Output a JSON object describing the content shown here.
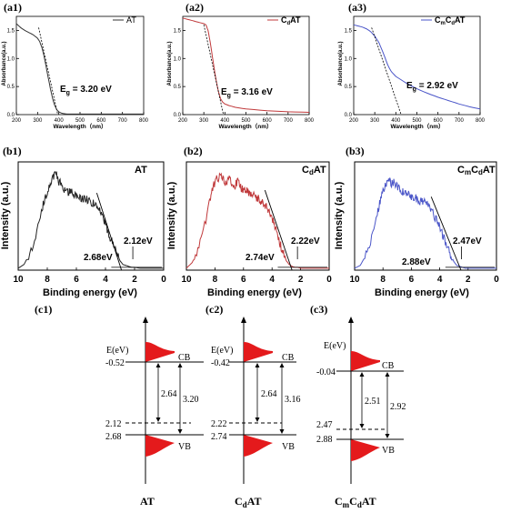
{
  "chart_data": [
    {
      "id": "a1",
      "panel_label": "(a1)",
      "type": "line",
      "legend": "AT",
      "legend_main": "AT",
      "legend_sub1": "",
      "legend_mid": "",
      "legend_sub2": "",
      "legend_tail": "",
      "series_color": "#333333",
      "xlabel": "Wavelength（nm）",
      "ylabel": "Absorbance(a.u.)",
      "xlim": [
        200,
        800
      ],
      "ylim": [
        0,
        1.75
      ],
      "xticks": [
        200,
        300,
        400,
        500,
        600,
        700,
        800
      ],
      "yticks": [
        0.0,
        0.5,
        1.0,
        1.5
      ],
      "annotation": "E_g = 3.20 eV",
      "annotation_main": "E",
      "annotation_sub": "g",
      "annotation_rest": " = 3.20 eV",
      "tangent": [
        [
          305,
          1.55
        ],
        [
          395,
          0.0
        ]
      ],
      "x": [
        200,
        220,
        240,
        260,
        280,
        300,
        310,
        320,
        330,
        340,
        350,
        360,
        370,
        380,
        390,
        400,
        410,
        420,
        440,
        460,
        500,
        600,
        700,
        800
      ],
      "y": [
        1.62,
        1.55,
        1.5,
        1.46,
        1.42,
        1.36,
        1.3,
        1.2,
        1.05,
        0.86,
        0.66,
        0.47,
        0.3,
        0.17,
        0.09,
        0.05,
        0.03,
        0.02,
        0.01,
        0.01,
        0.01,
        0.01,
        0.01,
        0.01
      ]
    },
    {
      "id": "a2",
      "panel_label": "(a2)",
      "type": "line",
      "legend": "CdAT",
      "legend_main": "C",
      "legend_sub1": "d",
      "legend_mid": "AT",
      "legend_sub2": "",
      "legend_tail": "",
      "series_color": "#c0393b",
      "xlabel": "Wavelength（nm）",
      "ylabel": "Absorbance(a.u.)",
      "xlim": [
        200,
        800
      ],
      "ylim": [
        0,
        1.75
      ],
      "xticks": [
        200,
        300,
        400,
        500,
        600,
        700,
        800
      ],
      "yticks": [
        0.0,
        0.5,
        1.0,
        1.5
      ],
      "annotation": "E_g = 3.16 eV",
      "annotation_main": "E",
      "annotation_sub": "g",
      "annotation_rest": " = 3.16 eV",
      "tangent": [
        [
          300,
          1.6
        ],
        [
          393,
          0.0
        ]
      ],
      "x": [
        200,
        220,
        240,
        260,
        280,
        300,
        310,
        320,
        330,
        340,
        350,
        360,
        370,
        380,
        390,
        400,
        420,
        450,
        500,
        600,
        700,
        800
      ],
      "y": [
        1.72,
        1.7,
        1.68,
        1.66,
        1.64,
        1.62,
        1.6,
        1.5,
        1.3,
        1.05,
        0.8,
        0.58,
        0.4,
        0.28,
        0.22,
        0.19,
        0.16,
        0.13,
        0.1,
        0.07,
        0.05,
        0.04
      ]
    },
    {
      "id": "a3",
      "panel_label": "(a3)",
      "type": "line",
      "legend": "CmCdAT",
      "legend_main": "C",
      "legend_sub1": "m",
      "legend_mid": "C",
      "legend_sub2": "d",
      "legend_tail": "AT",
      "series_color": "#4a55c8",
      "xlabel": "Wavelength（nm）",
      "ylabel": "Absorbance(a.u.)",
      "xlim": [
        200,
        800
      ],
      "ylim": [
        0,
        1.75
      ],
      "xticks": [
        200,
        300,
        400,
        500,
        600,
        700,
        800
      ],
      "yticks": [
        0.0,
        0.5,
        1.0,
        1.5
      ],
      "annotation": "E_g = 2.92 eV",
      "annotation_main": "E",
      "annotation_sub": "g",
      "annotation_rest": " = 2.92 eV",
      "tangent": [
        [
          285,
          1.55
        ],
        [
          425,
          0.0
        ]
      ],
      "x": [
        200,
        220,
        240,
        260,
        280,
        300,
        320,
        340,
        350,
        360,
        370,
        380,
        400,
        450,
        500,
        550,
        600,
        650,
        700,
        750,
        800
      ],
      "y": [
        1.6,
        1.58,
        1.56,
        1.53,
        1.48,
        1.4,
        1.28,
        1.1,
        1.0,
        0.9,
        0.82,
        0.76,
        0.68,
        0.56,
        0.46,
        0.38,
        0.31,
        0.25,
        0.19,
        0.14,
        0.1
      ]
    },
    {
      "id": "b1",
      "panel_label": "(b1)",
      "type": "line",
      "title_main": "AT",
      "title_sub": "",
      "title_mid": "",
      "title_sub2": "",
      "title_tail": "",
      "series_color": "#222222",
      "xlabel": "Binding energy (eV)",
      "ylabel": "Intensity (a.u.)",
      "xlim": [
        10,
        0
      ],
      "ylim": [
        0,
        1.15
      ],
      "xticks": [
        10,
        8,
        6,
        4,
        2,
        0
      ],
      "tangent": [
        [
          4.6,
          0.82
        ],
        [
          2.9,
          0.0
        ]
      ],
      "mark_text": "2.12eV",
      "mark_x": 2.12,
      "baseline_text": "2.68eV",
      "x": [
        10,
        9.6,
        9.2,
        8.8,
        8.4,
        8.2,
        8.0,
        7.8,
        7.6,
        7.4,
        7.2,
        7.0,
        6.8,
        6.6,
        6.4,
        6.2,
        6.0,
        5.8,
        5.6,
        5.4,
        5.2,
        5.0,
        4.8,
        4.6,
        4.4,
        4.2,
        4.0,
        3.8,
        3.6,
        3.4,
        3.2,
        3.0,
        2.8,
        2.6,
        2.4,
        2.2,
        2.0,
        1.6,
        1.2,
        0.8,
        0.4,
        0
      ],
      "y": [
        0.02,
        0.06,
        0.18,
        0.35,
        0.62,
        0.75,
        0.82,
        0.9,
        0.98,
        1.02,
        0.94,
        0.9,
        0.86,
        0.83,
        0.84,
        0.81,
        0.8,
        0.78,
        0.76,
        0.77,
        0.74,
        0.72,
        0.72,
        0.68,
        0.64,
        0.58,
        0.5,
        0.4,
        0.32,
        0.24,
        0.16,
        0.1,
        0.06,
        0.05,
        0.04,
        0.03,
        0.03,
        0.02,
        0.02,
        0.02,
        0.02,
        0.02
      ]
    },
    {
      "id": "b2",
      "panel_label": "(b2)",
      "type": "line",
      "title_main": "C",
      "title_sub": "d",
      "title_mid": "AT",
      "title_sub2": "",
      "title_tail": "",
      "series_color": "#c0393b",
      "xlabel": "Binding energy (eV)",
      "ylabel": "Intensity (a.u.)",
      "xlim": [
        10,
        0
      ],
      "ylim": [
        0,
        1.15
      ],
      "xticks": [
        10,
        8,
        6,
        4,
        2,
        0
      ],
      "tangent": [
        [
          4.5,
          0.85
        ],
        [
          2.6,
          0.0
        ]
      ],
      "mark_text": "2.22eV",
      "mark_x": 2.22,
      "baseline_text": "2.74eV",
      "x": [
        10,
        9.6,
        9.2,
        8.8,
        8.4,
        8.2,
        8.0,
        7.8,
        7.6,
        7.4,
        7.2,
        7.0,
        6.8,
        6.6,
        6.4,
        6.2,
        6.0,
        5.8,
        5.6,
        5.4,
        5.2,
        5.0,
        4.8,
        4.6,
        4.4,
        4.2,
        4.0,
        3.8,
        3.6,
        3.4,
        3.2,
        3.0,
        2.8,
        2.6,
        2.4,
        2.2,
        2.0,
        1.6,
        1.2,
        0.8,
        0.4,
        0
      ],
      "y": [
        0.02,
        0.08,
        0.2,
        0.42,
        0.7,
        0.85,
        0.94,
        0.98,
        1.0,
        0.96,
        0.92,
        0.98,
        0.93,
        0.9,
        0.95,
        0.88,
        0.84,
        0.86,
        0.82,
        0.8,
        0.78,
        0.77,
        0.74,
        0.72,
        0.68,
        0.62,
        0.55,
        0.46,
        0.36,
        0.26,
        0.17,
        0.1,
        0.06,
        0.04,
        0.03,
        0.03,
        0.02,
        0.02,
        0.02,
        0.02,
        0.02,
        0.02
      ]
    },
    {
      "id": "b3",
      "panel_label": "(b3)",
      "type": "line",
      "title_main": "C",
      "title_sub": "m",
      "title_mid": "C",
      "title_sub2": "d",
      "title_tail": "AT",
      "series_color": "#4a55c8",
      "xlabel": "Binding energy (eV)",
      "ylabel": "Intensity (a.u.)",
      "xlim": [
        10,
        0
      ],
      "ylim": [
        0,
        1.15
      ],
      "xticks": [
        10,
        8,
        6,
        4,
        2,
        0
      ],
      "tangent": [
        [
          4.6,
          0.78
        ],
        [
          2.5,
          0.0
        ]
      ],
      "mark_text": "2.47eV",
      "mark_x": 2.47,
      "baseline_text": "2.88eV",
      "x": [
        10,
        9.6,
        9.2,
        8.8,
        8.4,
        8.2,
        8.0,
        7.8,
        7.6,
        7.4,
        7.2,
        7.0,
        6.8,
        6.6,
        6.4,
        6.2,
        6.0,
        5.8,
        5.6,
        5.4,
        5.2,
        5.0,
        4.8,
        4.6,
        4.4,
        4.2,
        4.0,
        3.8,
        3.6,
        3.4,
        3.2,
        3.0,
        2.8,
        2.6,
        2.4,
        2.2,
        2.0,
        1.6,
        1.2,
        0.8,
        0.4,
        0
      ],
      "y": [
        0.02,
        0.05,
        0.16,
        0.34,
        0.6,
        0.74,
        0.84,
        0.92,
        0.98,
        0.92,
        0.95,
        0.88,
        0.86,
        0.84,
        0.82,
        0.8,
        0.79,
        0.78,
        0.76,
        0.74,
        0.73,
        0.71,
        0.68,
        0.64,
        0.58,
        0.52,
        0.45,
        0.38,
        0.3,
        0.22,
        0.15,
        0.09,
        0.05,
        0.04,
        0.03,
        0.02,
        0.02,
        0.02,
        0.02,
        0.02,
        0.02,
        0.02
      ]
    },
    {
      "id": "c1",
      "panel_label": "(c1)",
      "type": "diagram",
      "axis_label": "E(eV)",
      "cb_label": "CB",
      "vb_label": "VB",
      "cb_value": "-0.52",
      "vb_value": "2.68",
      "dashed_value": "2.12",
      "inner_gap": "2.64",
      "outer_gap": "3.20",
      "name_main": "AT",
      "name_sub": "",
      "name_mid": "",
      "name_sub2": "",
      "name_tail": ""
    },
    {
      "id": "c2",
      "panel_label": "(c2)",
      "type": "diagram",
      "axis_label": "E(eV)",
      "cb_label": "CB",
      "vb_label": "VB",
      "cb_value": "-0.42",
      "vb_value": "2.74",
      "dashed_value": "2.22",
      "inner_gap": "2.64",
      "outer_gap": "3.16",
      "name_main": "C",
      "name_sub": "d",
      "name_mid": "AT",
      "name_sub2": "",
      "name_tail": ""
    },
    {
      "id": "c3",
      "panel_label": "(c3)",
      "type": "diagram",
      "axis_label": "E(eV)",
      "cb_label": "CB",
      "vb_label": "VB",
      "cb_value": "-0.04",
      "vb_value": "2.88",
      "dashed_value": "2.47",
      "inner_gap": "2.51",
      "outer_gap": "2.92",
      "name_main": "C",
      "name_sub": "m",
      "name_mid": "C",
      "name_sub2": "d",
      "name_tail": "AT"
    }
  ],
  "colors": {
    "fill_red": "#e41a1c",
    "axis": "#000000"
  }
}
